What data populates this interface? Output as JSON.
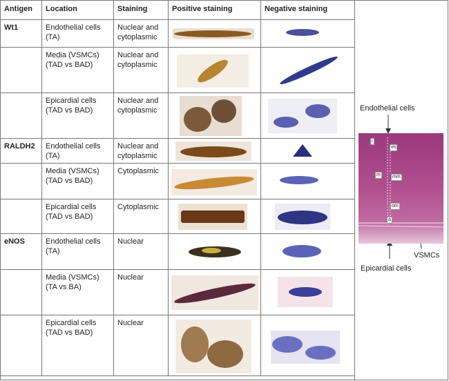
{
  "table": {
    "headers": {
      "antigen": "Antigen",
      "location": "Location",
      "staining": "Staining",
      "positive": "Positive staining",
      "negative": "Negative staining"
    },
    "rows": [
      {
        "antigen": "Wt1",
        "location": "Endothelial cells (TA)",
        "staining": "Nuclear and cytoplasmic"
      },
      {
        "antigen": "",
        "location": "Media (VSMCs) (TAD vs BAD)",
        "staining": "Nuclear and cytoplasmic"
      },
      {
        "antigen": "",
        "location": "Epicardial cells (TAD vs BAD)",
        "staining": "Nuclear and cytoplasmic"
      },
      {
        "antigen": "RALDH2",
        "location": "Endothelial cells (TA)",
        "staining": "Nuclear and cytoplasmic"
      },
      {
        "antigen": "",
        "location": "Media (VSMCs) (TAD vs BAD)",
        "staining": "Cytoplasmic"
      },
      {
        "antigen": "",
        "location": "Epicardial cells (TAD vs BAD)",
        "staining": "Cytoplasmic"
      },
      {
        "antigen": "eNOS",
        "location": "Endothelial cells (TA)",
        "staining": "Nuclear"
      },
      {
        "antigen": "",
        "location": "Media (VSMCs) (TA vs BA)",
        "staining": "Nuclear"
      },
      {
        "antigen": "",
        "location": "Epicardial cells (TAD vs BAD)",
        "staining": "Nuclear"
      }
    ]
  },
  "diagram": {
    "label_endothelial": "Endothelial cells",
    "label_epicardial": "Epicardial cells",
    "label_vsmcs": "VSMCs",
    "tags": {
      "i": "i",
      "im": "im",
      "m": "m",
      "mm": "mm",
      "om": "om",
      "a": "a"
    }
  },
  "colors": {
    "border": "#777777",
    "tissue_pink": "#b0508e",
    "brown_positive": "#8a5a22",
    "blue_negative": "#4a4fa0"
  }
}
